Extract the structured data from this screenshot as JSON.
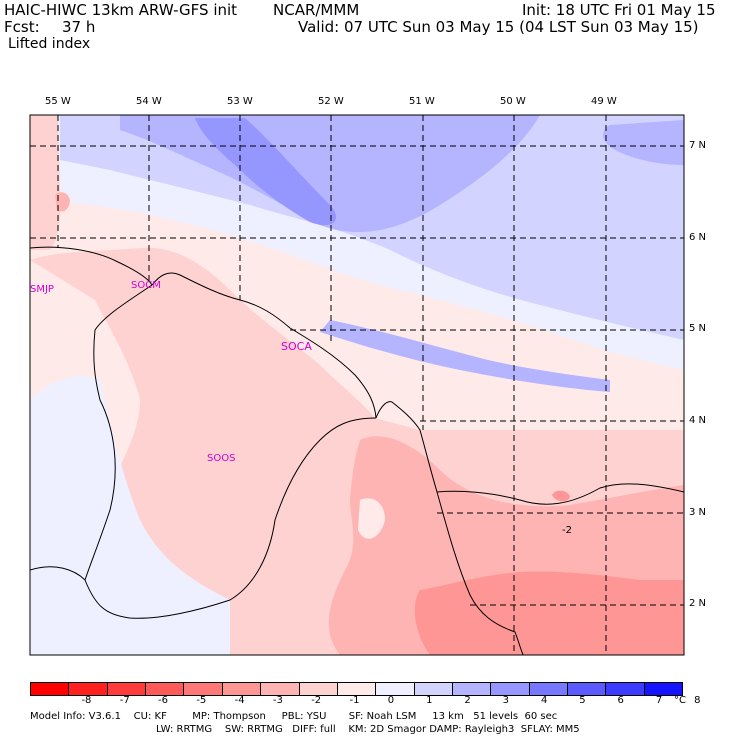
{
  "header": {
    "model": "HAIC-HIWC 13km ARW-GFS init",
    "org": "NCAR/MMM",
    "fcst_label": "Fcst:",
    "fcst_value": "37 h",
    "init": "Init: 18 UTC Fri 01 May 15",
    "valid": "Valid: 07 UTC Sun 03 May 15 (04 LST Sun 03 May 15)",
    "field": "Lifted index"
  },
  "map": {
    "lon_labels": [
      "55 W",
      "54 W",
      "53 W",
      "52 W",
      "51 W",
      "50 W",
      "49 W"
    ],
    "lat_labels": [
      "7 N",
      "6 N",
      "5 N",
      "4 N",
      "3 N",
      "2 N"
    ],
    "stations": [
      "SMJP",
      "SOCM",
      "SOCA",
      "SOOS"
    ],
    "contour_label": "-2"
  },
  "colorbar": {
    "ticks": [
      "-8",
      "-7",
      "-6",
      "-5",
      "-4",
      "-3",
      "-2",
      "-1",
      "0",
      "1",
      "2",
      "3",
      "4",
      "5",
      "6",
      "7",
      "8"
    ],
    "unit": "°C",
    "colors": [
      "#ff0000",
      "#ff2020",
      "#ff3c3c",
      "#ff5a5a",
      "#ff7878",
      "#ff9696",
      "#ffb4b4",
      "#ffd2d2",
      "#ffeaea",
      "#eef0ff",
      "#d2d4ff",
      "#b4b4ff",
      "#9696ff",
      "#7878ff",
      "#5a5aff",
      "#3c3cff",
      "#1414ff"
    ]
  },
  "footer": {
    "line1": "Model Info: V3.6.1    CU: KF        MP: Thompson     PBL: YSU       SF: Noah LSM     13 km   51 levels  60 sec",
    "line2": "LW: RRTMG    SW: RRTMG   DIFF: full    KM: 2D Smagor DAMP: Rayleigh3  SFLAY: MM5"
  }
}
